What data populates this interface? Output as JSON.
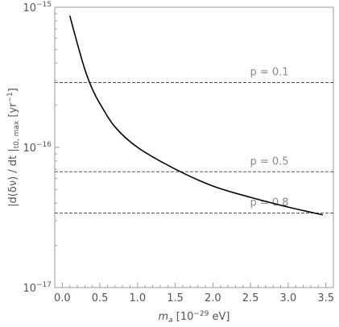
{
  "chart_data": {
    "type": "line",
    "title": "",
    "x_axis": {
      "label_main": "m",
      "label_sub": "a",
      "label_pre_sup": " [10",
      "label_sup": "−29",
      "label_post": " eV]",
      "range": [
        -0.1,
        3.6
      ],
      "ticks": [
        0.0,
        0.5,
        1.0,
        1.5,
        2.0,
        2.5,
        3.0,
        3.5
      ],
      "tick_labels": [
        "0.0",
        "0.5",
        "1.0",
        "1.5",
        "2.0",
        "2.5",
        "3.0",
        "3.5"
      ]
    },
    "y_axis": {
      "scale": "log",
      "label_main": "|d(δν) / dt |",
      "label_sub": "t0, max",
      "label_pre_sup": " [yr",
      "label_sup": "−1",
      "label_post": "]",
      "range": [
        1e-17,
        1e-15
      ],
      "major_ticks": [
        1e-17,
        1e-16,
        1e-15
      ],
      "major_tick_mantissa": [
        "10",
        "10",
        "10"
      ],
      "major_tick_exponents": [
        "−17",
        "−16",
        "−15"
      ],
      "minor_ticks": [
        2e-17,
        3e-17,
        4e-17,
        5e-17,
        6e-17,
        7e-17,
        8e-17,
        9e-17,
        2e-16,
        3e-16,
        4e-16,
        5e-16,
        6e-16,
        7e-16,
        8e-16,
        9e-16
      ]
    },
    "series": [
      {
        "style": "solid",
        "color": "#000000",
        "x": [
          0.1,
          0.2,
          0.3,
          0.4,
          0.5,
          0.7,
          1.0,
          1.5,
          2.0,
          2.5,
          3.0,
          3.46
        ],
        "y": [
          8.7e-16,
          5.5e-16,
          3.6e-16,
          2.6e-16,
          2.05e-16,
          1.4e-16,
          1e-16,
          7e-17,
          5.3e-17,
          4.4e-17,
          3.75e-17,
          3.3e-17
        ]
      }
    ],
    "reference_lines": [
      {
        "y": 2.9e-16,
        "label": "p = 0.1",
        "color": "#555555",
        "style": "dashed"
      },
      {
        "y": 6.7e-17,
        "label": "p = 0.5",
        "color": "#555555",
        "style": "dashed"
      },
      {
        "y": 3.4e-17,
        "label": "p = 0.8",
        "color": "#555555",
        "style": "dashed"
      }
    ],
    "reference_label_x": 2.75,
    "grid": false,
    "frame_color": "#9a9a9a"
  }
}
